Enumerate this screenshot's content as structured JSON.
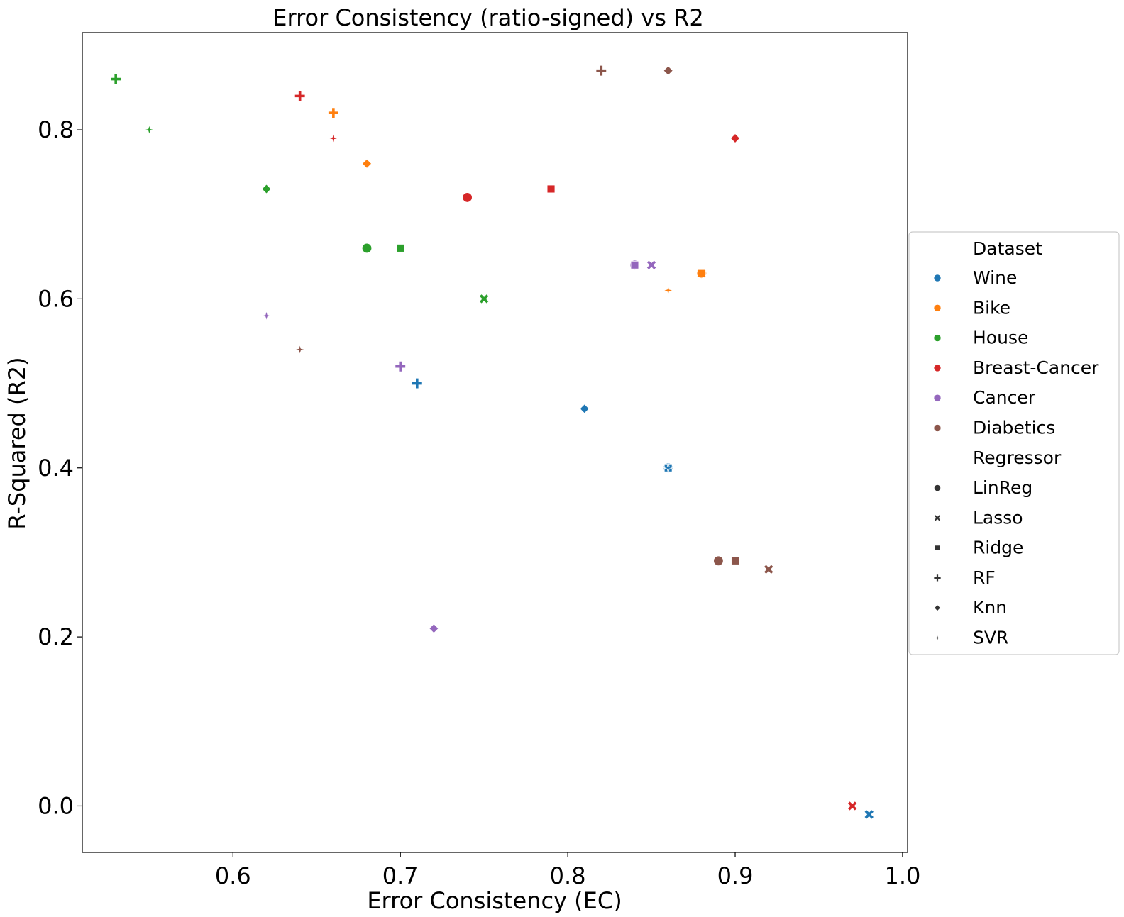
{
  "chart_data": {
    "type": "scatter",
    "title": "Error Consistency (ratio-signed) vs R2",
    "xlabel": "Error Consistency (EC)",
    "ylabel": "R-Squared (R2)",
    "xlim": [
      0.51,
      1.003
    ],
    "ylim": [
      -0.055,
      0.915
    ],
    "xticks": [
      0.6,
      0.7,
      0.8,
      0.9,
      1.0
    ],
    "xtick_labels": [
      "0.6",
      "0.7",
      "0.8",
      "0.9",
      "1.0"
    ],
    "yticks": [
      0.0,
      0.2,
      0.4,
      0.6,
      0.8
    ],
    "ytick_labels": [
      "0.0",
      "0.2",
      "0.4",
      "0.6",
      "0.8"
    ],
    "grid": false,
    "legend_position": "center right, outside plot",
    "legend": {
      "dataset_title": "Dataset",
      "datasets": [
        {
          "name": "Wine",
          "color": "#1f77b4"
        },
        {
          "name": "Bike",
          "color": "#ff7f0e"
        },
        {
          "name": "House",
          "color": "#2ca02c"
        },
        {
          "name": "Breast-Cancer",
          "color": "#d62728"
        },
        {
          "name": "Cancer",
          "color": "#9467bd"
        },
        {
          "name": "Diabetics",
          "color": "#8c564b"
        }
      ],
      "regressor_title": "Regressor",
      "regressors": [
        {
          "name": "LinReg",
          "marker": "circle"
        },
        {
          "name": "Lasso",
          "marker": "x"
        },
        {
          "name": "Ridge",
          "marker": "square"
        },
        {
          "name": "RF",
          "marker": "plus"
        },
        {
          "name": "Knn",
          "marker": "diamond"
        },
        {
          "name": "SVR",
          "marker": "star"
        }
      ]
    },
    "points": [
      {
        "dataset": "Wine",
        "regressor": "LinReg",
        "x": 0.86,
        "y": 0.4
      },
      {
        "dataset": "Wine",
        "regressor": "Lasso",
        "x": 0.98,
        "y": -0.01
      },
      {
        "dataset": "Wine",
        "regressor": "Ridge",
        "x": 0.86,
        "y": 0.4
      },
      {
        "dataset": "Wine",
        "regressor": "RF",
        "x": 0.71,
        "y": 0.5
      },
      {
        "dataset": "Wine",
        "regressor": "Knn",
        "x": 0.81,
        "y": 0.47
      },
      {
        "dataset": "Wine",
        "regressor": "SVR",
        "x": 0.86,
        "y": 0.4
      },
      {
        "dataset": "Bike",
        "regressor": "LinReg",
        "x": 0.88,
        "y": 0.63
      },
      {
        "dataset": "Bike",
        "regressor": "Lasso",
        "x": 0.88,
        "y": 0.63
      },
      {
        "dataset": "Bike",
        "regressor": "Ridge",
        "x": 0.88,
        "y": 0.63
      },
      {
        "dataset": "Bike",
        "regressor": "RF",
        "x": 0.66,
        "y": 0.82
      },
      {
        "dataset": "Bike",
        "regressor": "Knn",
        "x": 0.68,
        "y": 0.76
      },
      {
        "dataset": "Bike",
        "regressor": "SVR",
        "x": 0.86,
        "y": 0.61
      },
      {
        "dataset": "House",
        "regressor": "LinReg",
        "x": 0.68,
        "y": 0.66
      },
      {
        "dataset": "House",
        "regressor": "Lasso",
        "x": 0.75,
        "y": 0.6
      },
      {
        "dataset": "House",
        "regressor": "Ridge",
        "x": 0.7,
        "y": 0.66
      },
      {
        "dataset": "House",
        "regressor": "RF",
        "x": 0.53,
        "y": 0.86
      },
      {
        "dataset": "House",
        "regressor": "Knn",
        "x": 0.62,
        "y": 0.73
      },
      {
        "dataset": "House",
        "regressor": "SVR",
        "x": 0.55,
        "y": 0.8
      },
      {
        "dataset": "Breast-Cancer",
        "regressor": "LinReg",
        "x": 0.74,
        "y": 0.72
      },
      {
        "dataset": "Breast-Cancer",
        "regressor": "Lasso",
        "x": 0.97,
        "y": 0.0
      },
      {
        "dataset": "Breast-Cancer",
        "regressor": "Ridge",
        "x": 0.79,
        "y": 0.73
      },
      {
        "dataset": "Breast-Cancer",
        "regressor": "RF",
        "x": 0.64,
        "y": 0.84
      },
      {
        "dataset": "Breast-Cancer",
        "regressor": "Knn",
        "x": 0.9,
        "y": 0.79
      },
      {
        "dataset": "Breast-Cancer",
        "regressor": "SVR",
        "x": 0.66,
        "y": 0.79
      },
      {
        "dataset": "Cancer",
        "regressor": "LinReg",
        "x": 0.84,
        "y": 0.64
      },
      {
        "dataset": "Cancer",
        "regressor": "Lasso",
        "x": 0.85,
        "y": 0.64
      },
      {
        "dataset": "Cancer",
        "regressor": "Ridge",
        "x": 0.84,
        "y": 0.64
      },
      {
        "dataset": "Cancer",
        "regressor": "RF",
        "x": 0.7,
        "y": 0.52
      },
      {
        "dataset": "Cancer",
        "regressor": "Knn",
        "x": 0.72,
        "y": 0.21
      },
      {
        "dataset": "Cancer",
        "regressor": "SVR",
        "x": 0.62,
        "y": 0.58
      },
      {
        "dataset": "Diabetics",
        "regressor": "LinReg",
        "x": 0.89,
        "y": 0.29
      },
      {
        "dataset": "Diabetics",
        "regressor": "Lasso",
        "x": 0.92,
        "y": 0.28
      },
      {
        "dataset": "Diabetics",
        "regressor": "Ridge",
        "x": 0.9,
        "y": 0.29
      },
      {
        "dataset": "Diabetics",
        "regressor": "RF",
        "x": 0.82,
        "y": 0.87
      },
      {
        "dataset": "Diabetics",
        "regressor": "Knn",
        "x": 0.86,
        "y": 0.87
      },
      {
        "dataset": "Diabetics",
        "regressor": "SVR",
        "x": 0.64,
        "y": 0.54
      }
    ]
  }
}
